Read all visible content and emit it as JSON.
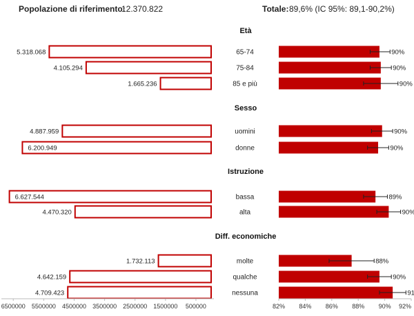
{
  "header": {
    "population_label": "Popolazione di riferimento:",
    "population_value": "12.370.822",
    "total_label": "Totale:",
    "total_value": "89,6% (IC 95%: 89,1-90,2%)"
  },
  "chart_data": [
    {
      "type": "bar",
      "orientation": "horizontal",
      "direction": "right-to-left",
      "series": [
        {
          "values": [
            5318068,
            4105294,
            1665236,
            4887959,
            6200949,
            6627544,
            4470320,
            1732113,
            4642159,
            4709423
          ],
          "labels": [
            "5.318.068",
            "4.105.294",
            "1.665.236",
            "4.887.959",
            "6.200.949",
            "6.627.544",
            "4.470.320",
            "1.732.113",
            "4.642.159",
            "4.709.423"
          ]
        }
      ],
      "xlim": [
        0,
        6800000
      ],
      "xticks": [
        6500000,
        5500000,
        4500000,
        3500000,
        2500000,
        1500000,
        500000
      ],
      "bar_style": "outline",
      "color": "#c00000"
    },
    {
      "type": "bar",
      "orientation": "horizontal",
      "groups": [
        {
          "title": "Età",
          "categories": [
            "65-74",
            "75-84",
            "85 e più"
          ]
        },
        {
          "title": "Sesso",
          "categories": [
            "uomini",
            "donne"
          ]
        },
        {
          "title": "Istruzione",
          "categories": [
            "bassa",
            "alta"
          ]
        },
        {
          "title": "Diff. economiche",
          "categories": [
            "molte",
            "qualche",
            "nessuna"
          ]
        }
      ],
      "series": [
        {
          "values": [
            89.6,
            89.7,
            89.7,
            89.8,
            89.5,
            89.3,
            90.3,
            87.5,
            89.6,
            90.6
          ],
          "ci_low": [
            88.9,
            88.9,
            88.4,
            89.0,
            88.7,
            88.4,
            89.4,
            85.8,
            88.7,
            89.6
          ],
          "ci_high": [
            90.4,
            90.5,
            91.0,
            90.6,
            90.3,
            90.2,
            91.2,
            89.2,
            90.5,
            91.6
          ],
          "labels": [
            "90%",
            "90%",
            "90%",
            "90%",
            "90%",
            "89%",
            "90%",
            "88%",
            "90%",
            "91%"
          ]
        }
      ],
      "xlim": [
        82,
        92
      ],
      "xticks": [
        "82%",
        "84%",
        "86%",
        "88%",
        "90%",
        "92%"
      ],
      "bar_style": "filled",
      "color": "#c00000"
    }
  ]
}
